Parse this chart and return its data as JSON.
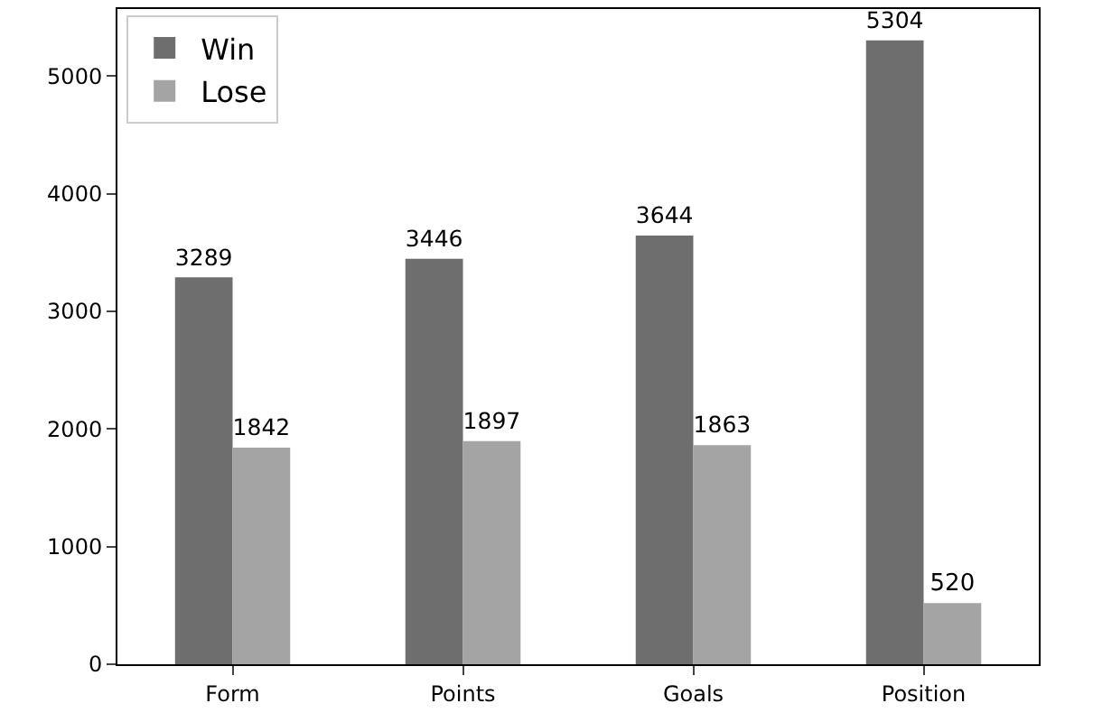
{
  "chart_data": {
    "type": "bar",
    "categories": [
      "Form",
      "Points",
      "Goals",
      "Position"
    ],
    "series": [
      {
        "name": "Win",
        "color": "#6e6e6e",
        "values": [
          3289,
          3446,
          3644,
          5304
        ]
      },
      {
        "name": "Lose",
        "color": "#a4a4a4",
        "values": [
          1842,
          1897,
          1863,
          520
        ]
      }
    ],
    "ylim": [
      0,
      5570
    ],
    "yticks": [
      0,
      1000,
      2000,
      3000,
      4000,
      5000
    ],
    "data_labels": true,
    "legend": "top left",
    "grid": false
  }
}
